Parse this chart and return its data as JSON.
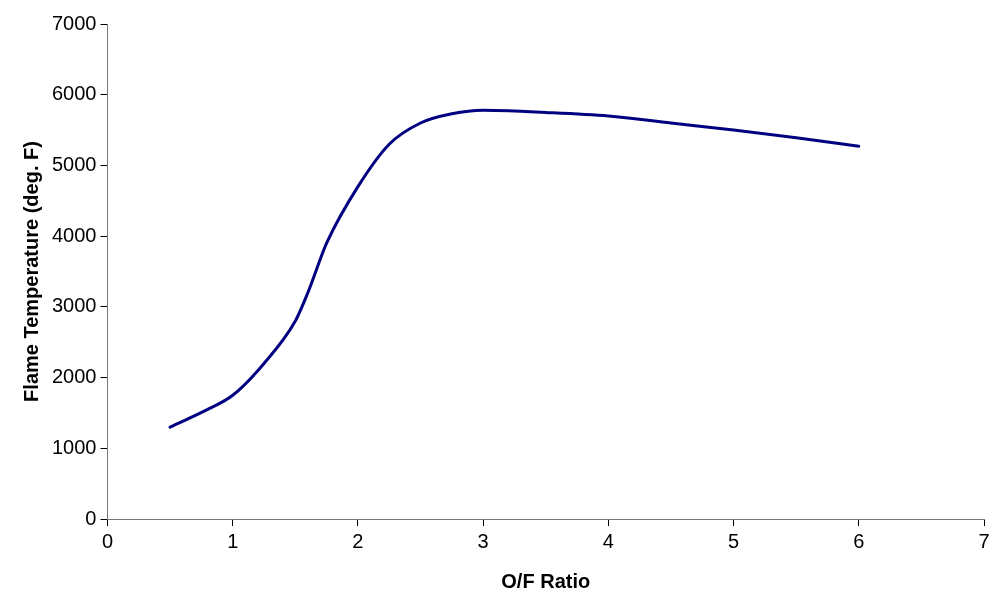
{
  "chart_data": {
    "type": "line",
    "xlabel": "O/F Ratio",
    "ylabel": "Flame Temperature (deg. F)",
    "xlim": [
      0,
      7
    ],
    "xticks": [
      0,
      1,
      2,
      3,
      4,
      5,
      6,
      7
    ],
    "ylim": [
      0,
      7000
    ],
    "yticks": [
      0,
      1000,
      2000,
      3000,
      4000,
      5000,
      6000,
      7000
    ],
    "grid": false,
    "legend": false,
    "marker": "none",
    "line_style": "solid",
    "series": [
      {
        "color": "#000080",
        "x": [
          0.5,
          0.8,
          1.0,
          1.25,
          1.5,
          1.6,
          1.75,
          2.0,
          2.25,
          2.5,
          2.75,
          3.0,
          3.5,
          4.0,
          4.5,
          5.0,
          5.5,
          6.0
        ],
        "values": [
          1300,
          1550,
          1750,
          2200,
          2800,
          3200,
          3900,
          4700,
          5300,
          5600,
          5730,
          5780,
          5750,
          5700,
          5600,
          5500,
          5390,
          5270
        ]
      }
    ]
  }
}
